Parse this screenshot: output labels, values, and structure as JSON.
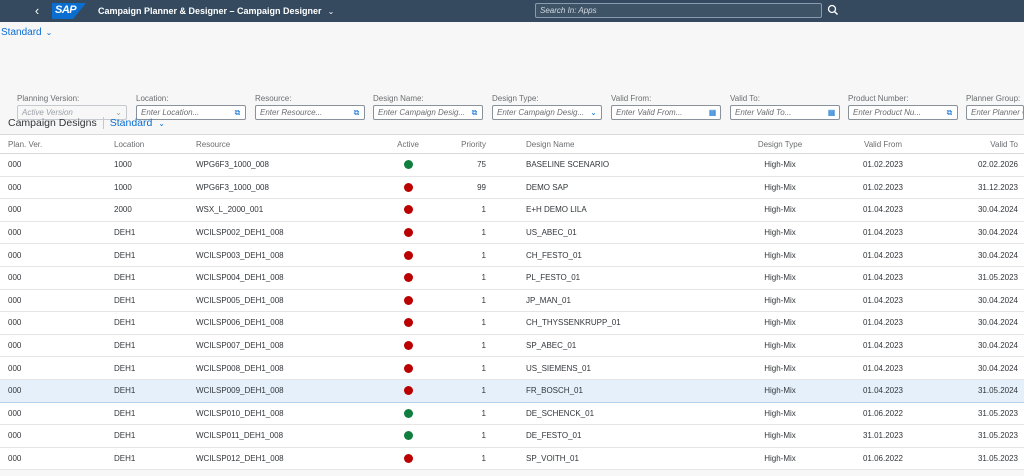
{
  "shell": {
    "back_icon": "chevron-left-icon",
    "logo_text": "SAP",
    "title": "Campaign Planner & Designer – Campaign Designer",
    "search_placeholder": "Search In: Apps",
    "search_icon": "search-icon"
  },
  "page_variant": "Standard",
  "filters": [
    {
      "label": "Planning Version:",
      "placeholder": "Active Version",
      "type": "select",
      "disabled": true
    },
    {
      "label": "Location:",
      "placeholder": "Enter Location...",
      "type": "valuehelp"
    },
    {
      "label": "Resource:",
      "placeholder": "Enter Resource...",
      "type": "valuehelp"
    },
    {
      "label": "Design Name:",
      "placeholder": "Enter Campaign Desig...",
      "type": "valuehelp"
    },
    {
      "label": "Design Type:",
      "placeholder": "Enter Campaign Desig...",
      "type": "select"
    },
    {
      "label": "Valid From:",
      "placeholder": "Enter Valid From...",
      "type": "date"
    },
    {
      "label": "Valid To:",
      "placeholder": "Enter Valid To...",
      "type": "date"
    },
    {
      "label": "Product Number:",
      "placeholder": "Enter Product Nu...",
      "type": "valuehelp"
    },
    {
      "label": "Planner Group:",
      "placeholder": "Enter Planner G",
      "type": "valuehelp"
    }
  ],
  "table": {
    "title": "Campaign Designs",
    "variant": "Standard",
    "columns": [
      "Plan. Ver.",
      "Location",
      "Resource",
      "Active",
      "Priority",
      "Design Name",
      "Design Type",
      "Valid From",
      "Valid To"
    ],
    "status_colors": {
      "green": "#107e3e",
      "red": "#bb0000"
    },
    "rows": [
      {
        "plan": "000",
        "location": "1000",
        "resource": "WPG6F3_1000_008",
        "active": "green",
        "priority": "75",
        "design_name": "BASELINE SCENARIO",
        "design_type": "High-Mix",
        "valid_from": "01.02.2023",
        "valid_to": "02.02.2026"
      },
      {
        "plan": "000",
        "location": "1000",
        "resource": "WPG6F3_1000_008",
        "active": "red",
        "priority": "99",
        "design_name": "DEMO SAP",
        "design_type": "High-Mix",
        "valid_from": "01.02.2023",
        "valid_to": "31.12.2023"
      },
      {
        "plan": "000",
        "location": "2000",
        "resource": "WSX_L_2000_001",
        "active": "red",
        "priority": "1",
        "design_name": "E+H DEMO LILA",
        "design_type": "High-Mix",
        "valid_from": "01.04.2023",
        "valid_to": "30.04.2024"
      },
      {
        "plan": "000",
        "location": "DEH1",
        "resource": "WCILSP002_DEH1_008",
        "active": "red",
        "priority": "1",
        "design_name": "US_ABEC_01",
        "design_type": "High-Mix",
        "valid_from": "01.04.2023",
        "valid_to": "30.04.2024"
      },
      {
        "plan": "000",
        "location": "DEH1",
        "resource": "WCILSP003_DEH1_008",
        "active": "red",
        "priority": "1",
        "design_name": "CH_FESTO_01",
        "design_type": "High-Mix",
        "valid_from": "01.04.2023",
        "valid_to": "30.04.2024"
      },
      {
        "plan": "000",
        "location": "DEH1",
        "resource": "WCILSP004_DEH1_008",
        "active": "red",
        "priority": "1",
        "design_name": "PL_FESTO_01",
        "design_type": "High-Mix",
        "valid_from": "01.04.2023",
        "valid_to": "31.05.2023"
      },
      {
        "plan": "000",
        "location": "DEH1",
        "resource": "WCILSP005_DEH1_008",
        "active": "red",
        "priority": "1",
        "design_name": "JP_MAN_01",
        "design_type": "High-Mix",
        "valid_from": "01.04.2023",
        "valid_to": "30.04.2024"
      },
      {
        "plan": "000",
        "location": "DEH1",
        "resource": "WCILSP006_DEH1_008",
        "active": "red",
        "priority": "1",
        "design_name": "CH_THYSSENKRUPP_01",
        "design_type": "High-Mix",
        "valid_from": "01.04.2023",
        "valid_to": "30.04.2024"
      },
      {
        "plan": "000",
        "location": "DEH1",
        "resource": "WCILSP007_DEH1_008",
        "active": "red",
        "priority": "1",
        "design_name": "SP_ABEC_01",
        "design_type": "High-Mix",
        "valid_from": "01.04.2023",
        "valid_to": "30.04.2024"
      },
      {
        "plan": "000",
        "location": "DEH1",
        "resource": "WCILSP008_DEH1_008",
        "active": "red",
        "priority": "1",
        "design_name": "US_SIEMENS_01",
        "design_type": "High-Mix",
        "valid_from": "01.04.2023",
        "valid_to": "30.04.2024"
      },
      {
        "plan": "000",
        "location": "DEH1",
        "resource": "WCILSP009_DEH1_008",
        "active": "red",
        "priority": "1",
        "design_name": "FR_BOSCH_01",
        "design_type": "High-Mix",
        "valid_from": "01.04.2023",
        "valid_to": "31.05.2024",
        "selected": true
      },
      {
        "plan": "000",
        "location": "DEH1",
        "resource": "WCILSP010_DEH1_008",
        "active": "green",
        "priority": "1",
        "design_name": "DE_SCHENCK_01",
        "design_type": "High-Mix",
        "valid_from": "01.06.2022",
        "valid_to": "31.05.2023"
      },
      {
        "plan": "000",
        "location": "DEH1",
        "resource": "WCILSP011_DEH1_008",
        "active": "green",
        "priority": "1",
        "design_name": "DE_FESTO_01",
        "design_type": "High-Mix",
        "valid_from": "31.01.2023",
        "valid_to": "31.05.2023"
      },
      {
        "plan": "000",
        "location": "DEH1",
        "resource": "WCILSP012_DEH1_008",
        "active": "red",
        "priority": "1",
        "design_name": "SP_VOITH_01",
        "design_type": "High-Mix",
        "valid_from": "01.06.2022",
        "valid_to": "31.05.2023"
      }
    ]
  }
}
